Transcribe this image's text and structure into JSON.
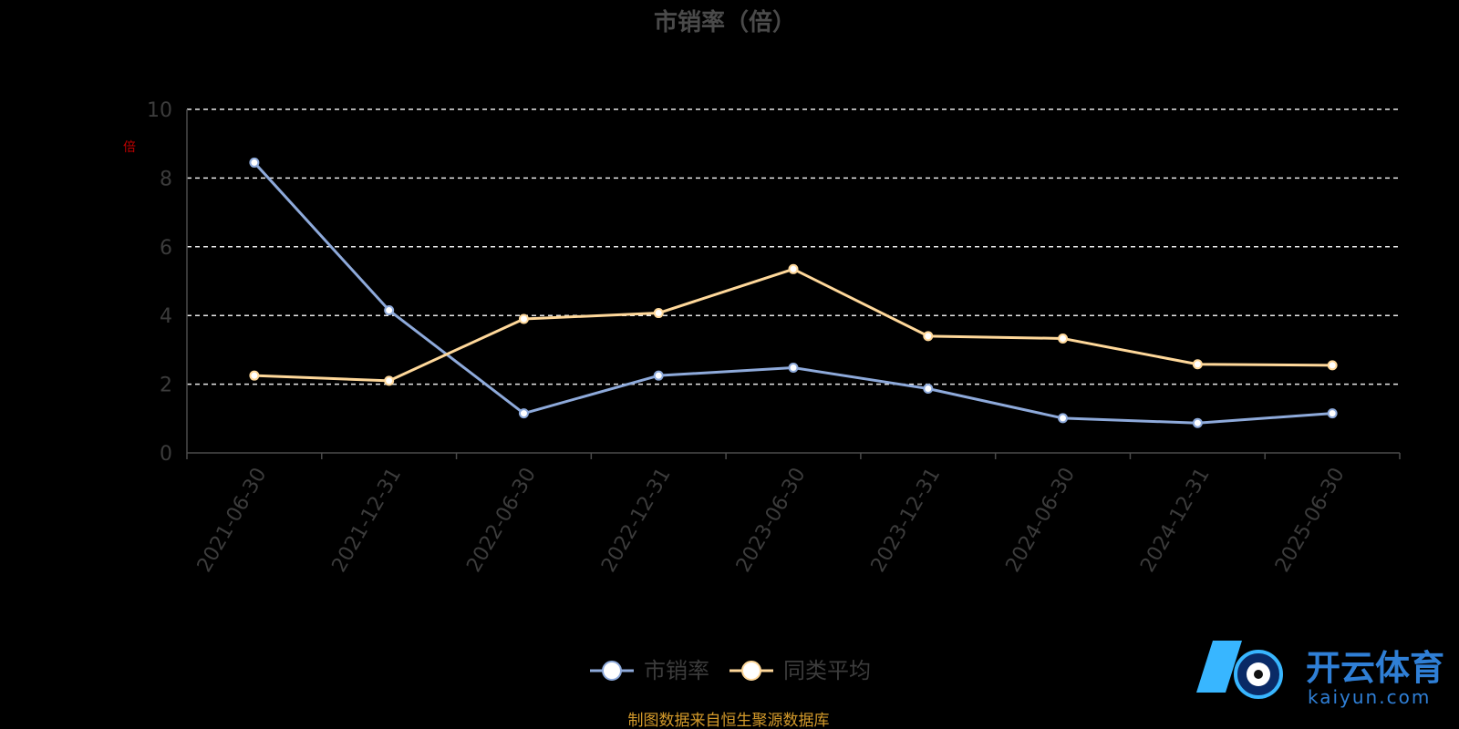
{
  "chart_data": {
    "type": "line",
    "title": "市销率（倍）",
    "ylabel": "倍",
    "categories": [
      "2021-06-30",
      "2021-12-31",
      "2022-06-30",
      "2022-12-31",
      "2023-06-30",
      "2023-12-31",
      "2024-06-30",
      "2024-12-31",
      "2025-06-30"
    ],
    "ylim": [
      0,
      10
    ],
    "yticks": [
      0,
      2,
      4,
      6,
      8,
      10
    ],
    "grid": true,
    "legend_position": "bottom-center",
    "series": [
      {
        "name": "市销率",
        "color": "#8eaadb",
        "values": [
          8.45,
          4.15,
          1.15,
          2.25,
          2.48,
          1.87,
          1.01,
          0.87,
          1.15
        ]
      },
      {
        "name": "同类平均",
        "color": "#ffd89a",
        "values": [
          2.25,
          2.1,
          3.9,
          4.07,
          5.35,
          3.4,
          3.33,
          2.58,
          2.55
        ]
      }
    ]
  },
  "footer": {
    "source": "制图数据来自恒生聚源数据库"
  },
  "watermark": {
    "cn": "开云体育",
    "en": "kaiyun.com",
    "mark": "K"
  }
}
